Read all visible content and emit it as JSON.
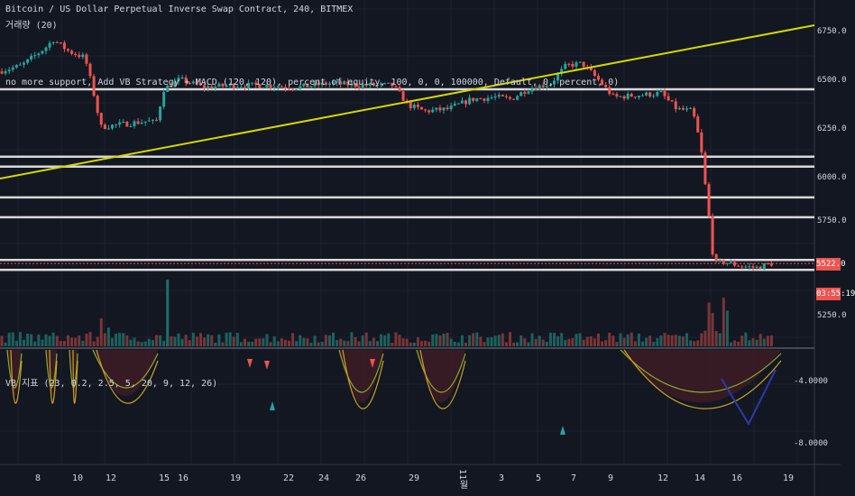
{
  "header": {
    "symbol_line": "Bitcoin / US Dollar Perpetual Inverse Swap Contract, 240, BITMEX",
    "volume_line": "거래량 (20)",
    "strategy_line": "no more support, Add VB Strategy + MACD (120, 120), percent of equity, 100, 0, 0, 100000, Default, 0, percent, 0)",
    "indicator_line": "VB 지표 (23, 0.2, 2.5, 5, 20, 9, 12, 26)"
  },
  "price_axis": {
    "ticks": [
      "6750.0",
      "6500.0",
      "6250.0",
      "6000.0",
      "5750.0",
      "5250.0"
    ],
    "last_price": "5522.0",
    "countdown": "03:55:19"
  },
  "indicator_axis": {
    "ticks": [
      "-4.0000",
      "-8.0000"
    ]
  },
  "time_axis": {
    "ticks": [
      "8",
      "10",
      "12",
      "15",
      "16",
      "19",
      "22",
      "24",
      "26",
      "29",
      "11월",
      "3",
      "5",
      "7",
      "9",
      "12",
      "14",
      "16",
      "19"
    ]
  },
  "colors": {
    "background": "#131722",
    "up": "#26a69a",
    "down": "#ef5350",
    "trendline": "#d4d800",
    "hline": "#d8d8d8",
    "last_price": "#ef5350"
  },
  "chart_data": {
    "type": "candlestick",
    "ylim": [
      5100,
      6850
    ],
    "horizontal_levels": [
      6400,
      6060,
      6010,
      5855,
      5755,
      5540,
      5490
    ],
    "trendline": {
      "from": [
        0,
        5950
      ],
      "to": [
        100,
        6700
      ]
    },
    "price_path": [
      {
        "x": 0,
        "price": 6490
      },
      {
        "x": 3,
        "price": 6520
      },
      {
        "x": 6,
        "price": 6610
      },
      {
        "x": 7,
        "price": 6650
      },
      {
        "x": 9,
        "price": 6590
      },
      {
        "x": 11,
        "price": 6560
      },
      {
        "x": 12,
        "price": 6400
      },
      {
        "x": 13,
        "price": 6210
      },
      {
        "x": 15,
        "price": 6220
      },
      {
        "x": 17,
        "price": 6230
      },
      {
        "x": 19,
        "price": 6240
      },
      {
        "x": 20,
        "price": 6230
      },
      {
        "x": 21,
        "price": 6400
      },
      {
        "x": 23,
        "price": 6450
      },
      {
        "x": 26,
        "price": 6410
      },
      {
        "x": 30,
        "price": 6420
      },
      {
        "x": 34,
        "price": 6420
      },
      {
        "x": 38,
        "price": 6410
      },
      {
        "x": 42,
        "price": 6430
      },
      {
        "x": 46,
        "price": 6420
      },
      {
        "x": 50,
        "price": 6420
      },
      {
        "x": 52,
        "price": 6320
      },
      {
        "x": 54,
        "price": 6290
      },
      {
        "x": 57,
        "price": 6300
      },
      {
        "x": 60,
        "price": 6350
      },
      {
        "x": 63,
        "price": 6360
      },
      {
        "x": 65,
        "price": 6350
      },
      {
        "x": 67,
        "price": 6400
      },
      {
        "x": 70,
        "price": 6430
      },
      {
        "x": 72,
        "price": 6520
      },
      {
        "x": 74,
        "price": 6530
      },
      {
        "x": 76,
        "price": 6450
      },
      {
        "x": 78,
        "price": 6360
      },
      {
        "x": 81,
        "price": 6370
      },
      {
        "x": 84,
        "price": 6380
      },
      {
        "x": 86,
        "price": 6300
      },
      {
        "x": 88,
        "price": 6290
      },
      {
        "x": 89,
        "price": 6120
      },
      {
        "x": 90,
        "price": 5780
      },
      {
        "x": 90.7,
        "price": 5520
      },
      {
        "x": 92,
        "price": 5530
      },
      {
        "x": 94,
        "price": 5510
      },
      {
        "x": 96,
        "price": 5500
      },
      {
        "x": 98,
        "price": 5522
      }
    ]
  }
}
